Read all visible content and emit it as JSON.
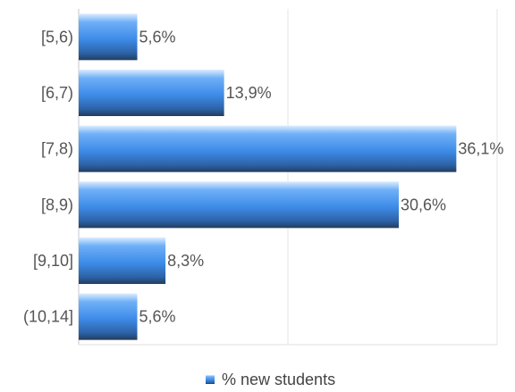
{
  "chart_data": {
    "type": "bar",
    "orientation": "horizontal",
    "categories": [
      "[5,6)",
      "[6,7)",
      "[7,8)",
      "[8,9)",
      "[9,10]",
      "(10,14]"
    ],
    "series": [
      {
        "name": "% new students",
        "values": [
          5.6,
          13.9,
          36.1,
          30.6,
          8.3,
          5.6
        ],
        "labels": [
          "5,6%",
          "13,9%",
          "36,1%",
          "30,6%",
          "8,3%",
          "5,6%"
        ],
        "color": "#3d8be8"
      }
    ],
    "xlim": [
      0,
      40
    ],
    "grid": true,
    "legend": "bottom"
  }
}
